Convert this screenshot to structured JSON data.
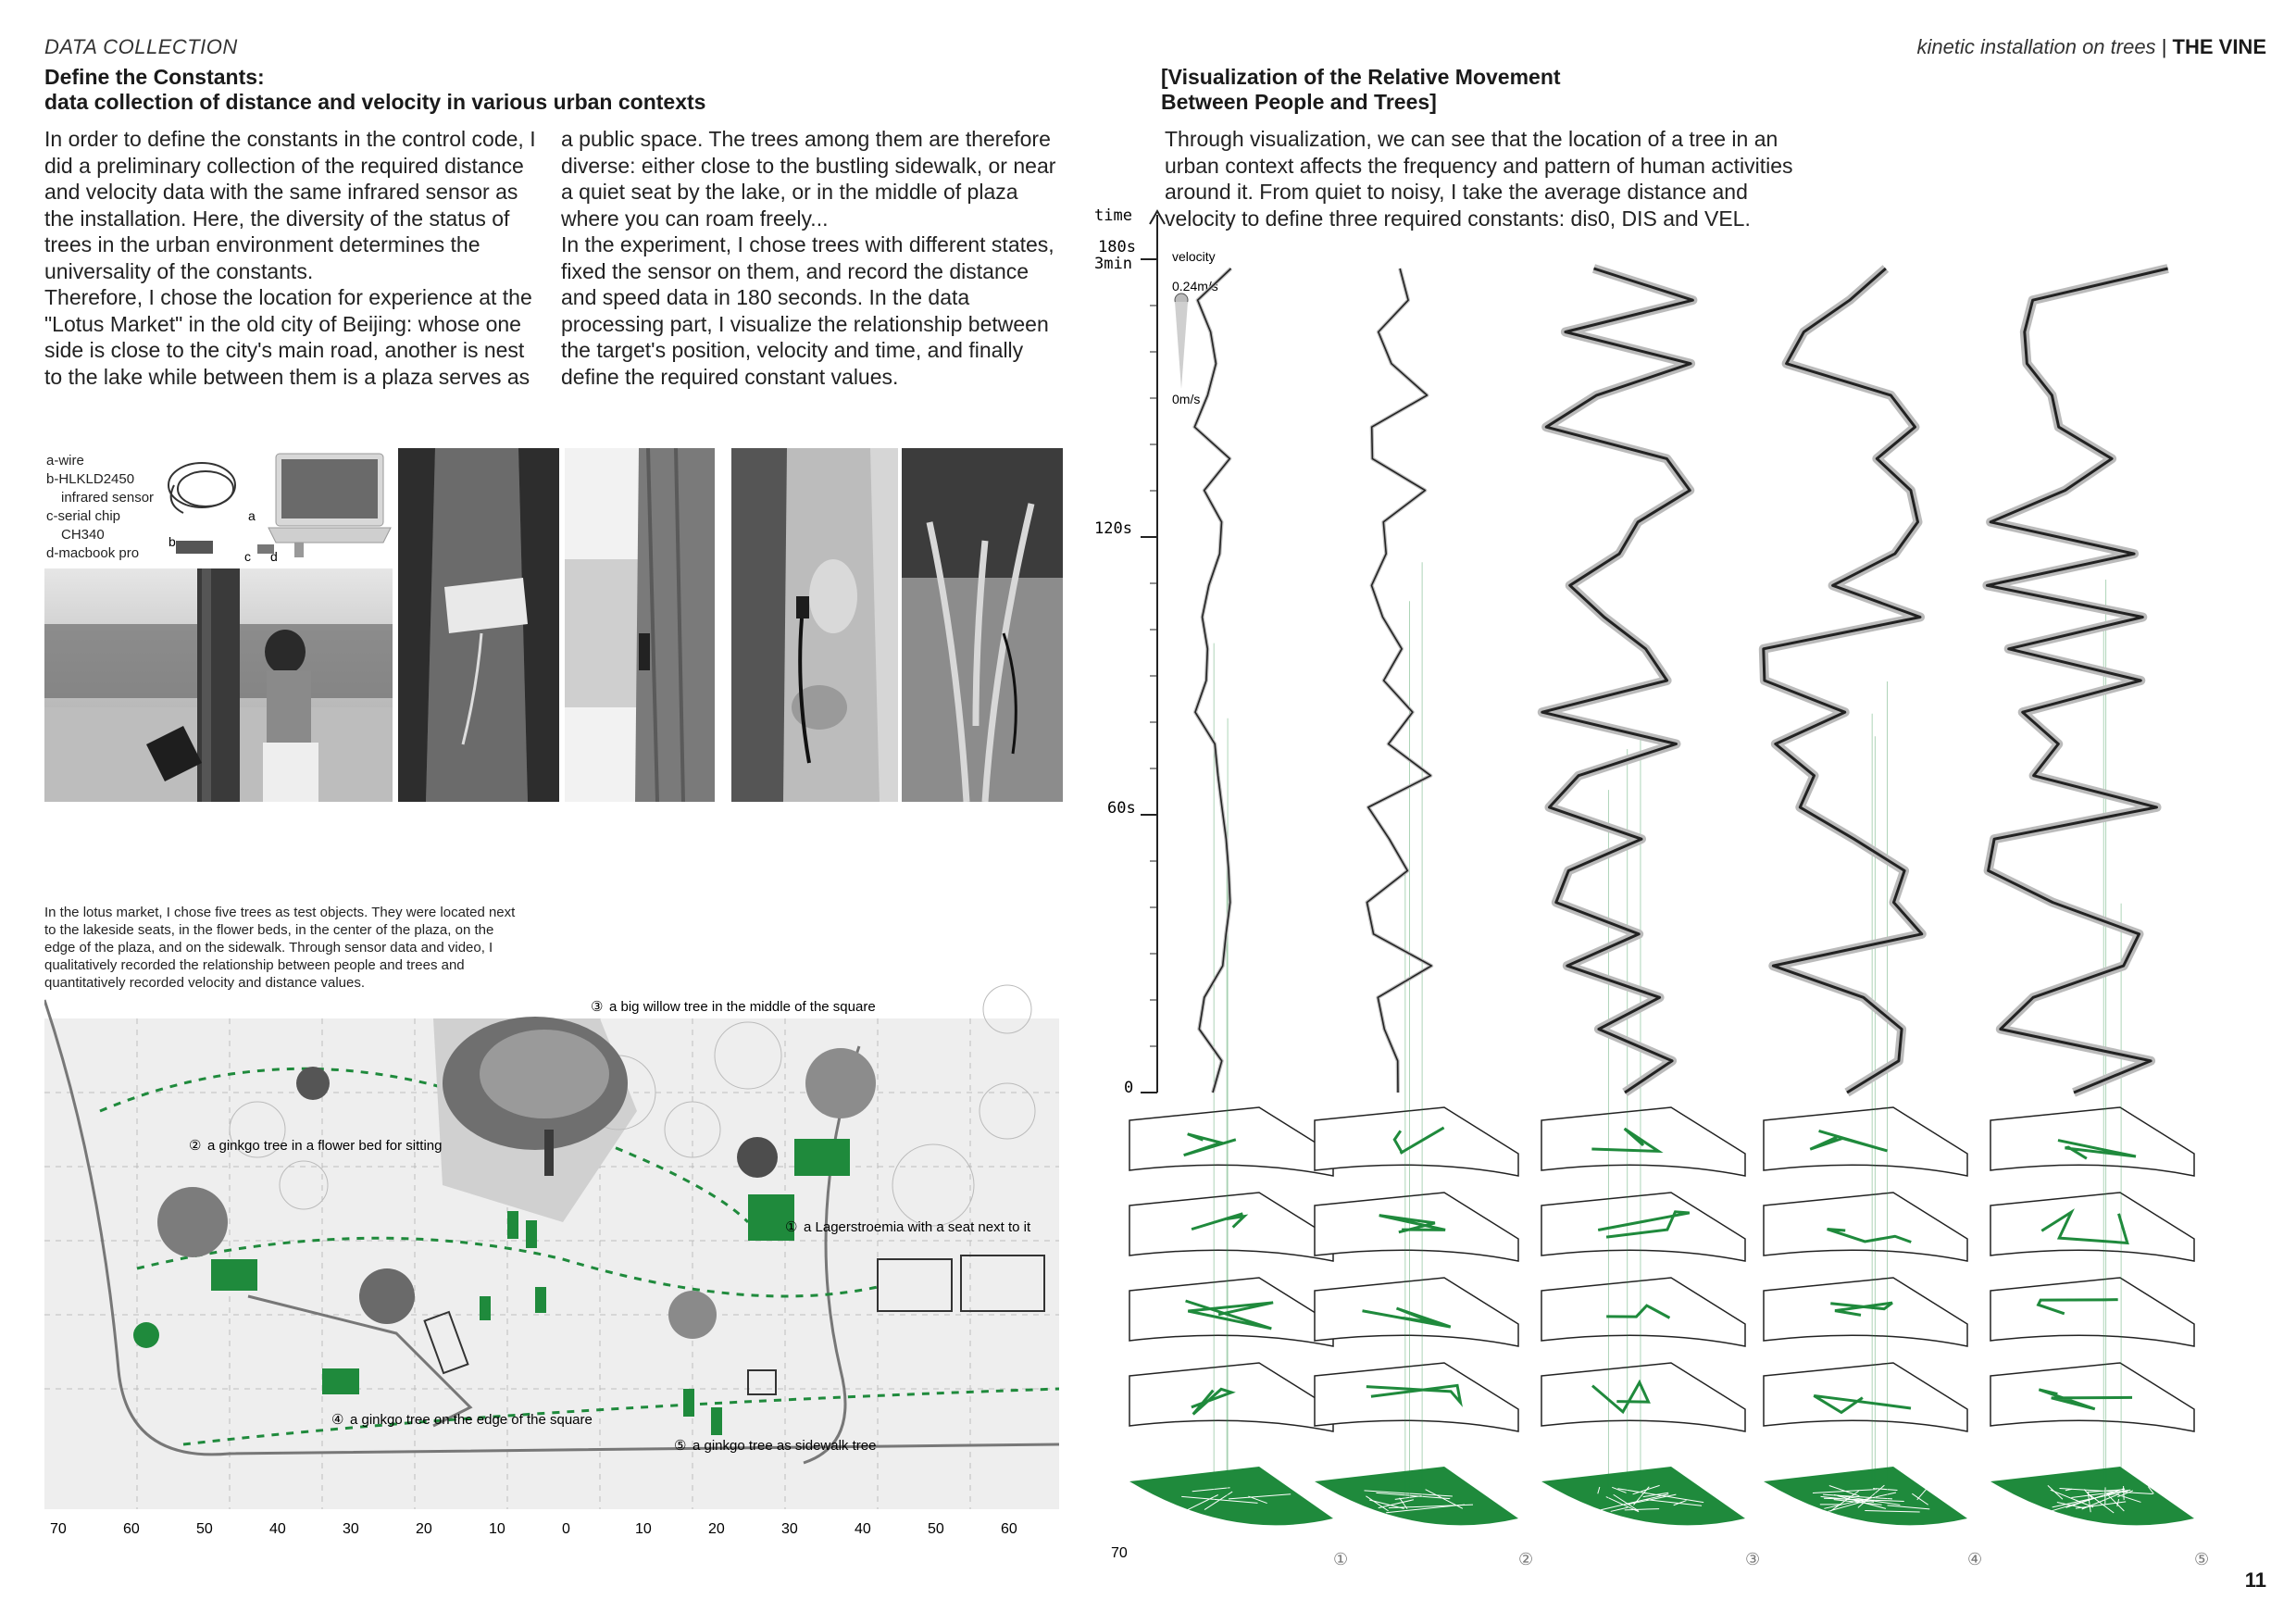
{
  "header": {
    "section_tag": "DATA COLLECTION",
    "title_line1": "Define the Constants:",
    "title_line2": "data collection of distance and velocity in various urban contexts",
    "kicker_italic": "kinetic installation on trees",
    "kicker_separator": "|",
    "kicker_bold": "THE VINE"
  },
  "body_left": {
    "col1": [
      "In order to define the constants in the control code, I did a preliminary collection of the required distance and velocity data with the same infrared sensor as the installation. Here, the diversity of the status of trees in the urban environment determines the universality of the constants.",
      "Therefore, I chose the location for experience at the \"Lotus Market\" in the old city of Beijing: whose one side is close to the city's main road, another is nest to the lake while between them is a plaza serves as"
    ],
    "col2": [
      "a public space. The trees among them are therefore diverse: either close to the bustling sidewalk, or near a quiet seat by the lake, or in the middle of plaza where you can roam freely...",
      "In the experiment, I chose trees with different states, fixed the sensor on them, and record the distance and speed data in 180 seconds. In the data processing part, I visualize the relationship between the target's position, velocity and time, and finally define the required constant values."
    ]
  },
  "equipment_legend": {
    "items": [
      "a-wire",
      "b-HLKLD2450",
      "infrared sensor",
      "c-serial chip",
      "CH340",
      "d-macbook pro"
    ],
    "letters": [
      "a",
      "b",
      "c",
      "d"
    ]
  },
  "plan": {
    "caption": "In the lotus market, I chose five trees as test objects. They were located next to the lakeside seats, in the flower beds, in the center of the plaza, on the edge of the plaza, and on the sidewalk. Through sensor data and video, I qualitatively recorded the relationship between people and trees and quantitatively recorded velocity and distance values.",
    "labels": {
      "t1": "a Lagerstroemia with a seat next to it",
      "t2": "a ginkgo tree in a flower bed for sitting",
      "t3": "a big willow tree in the middle of the square",
      "t4": "a ginkgo tree on the edge of the square",
      "t5": "a ginkgo tree as sidewalk tree"
    },
    "markers": {
      "t1": "①",
      "t2": "②",
      "t3": "③",
      "t4": "④",
      "t5": "⑤"
    },
    "axis_ticks": [
      "70",
      "60",
      "50",
      "40",
      "30",
      "20",
      "10",
      "0",
      "10",
      "20",
      "30",
      "40",
      "50",
      "60"
    ]
  },
  "viz": {
    "title_line1": "[Visualization of the Relative Movement",
    "title_line2": "Between People and Trees]",
    "paragraph": "Through visualization, we can see that the location of a tree in an urban context affects the frequency and pattern of human activities around it. From quiet to noisy, I take the average distance and velocity to define three required constants: dis0, DIS and VEL.",
    "time_label": "time",
    "time_ticks": {
      "t180": "180s",
      "t3min": "3min",
      "t120": "120s",
      "t60": "60s",
      "t0": "0"
    },
    "velocity_key": {
      "label": "velocity",
      "max": "0.24m/s",
      "min": "0m/s"
    },
    "base_label": "70",
    "tree_markers": [
      "①",
      "②",
      "③",
      "④",
      "⑤"
    ],
    "colors": {
      "green": "#1f8a3c",
      "ribbon": "#222222"
    }
  },
  "footer": {
    "page_number": "11"
  }
}
